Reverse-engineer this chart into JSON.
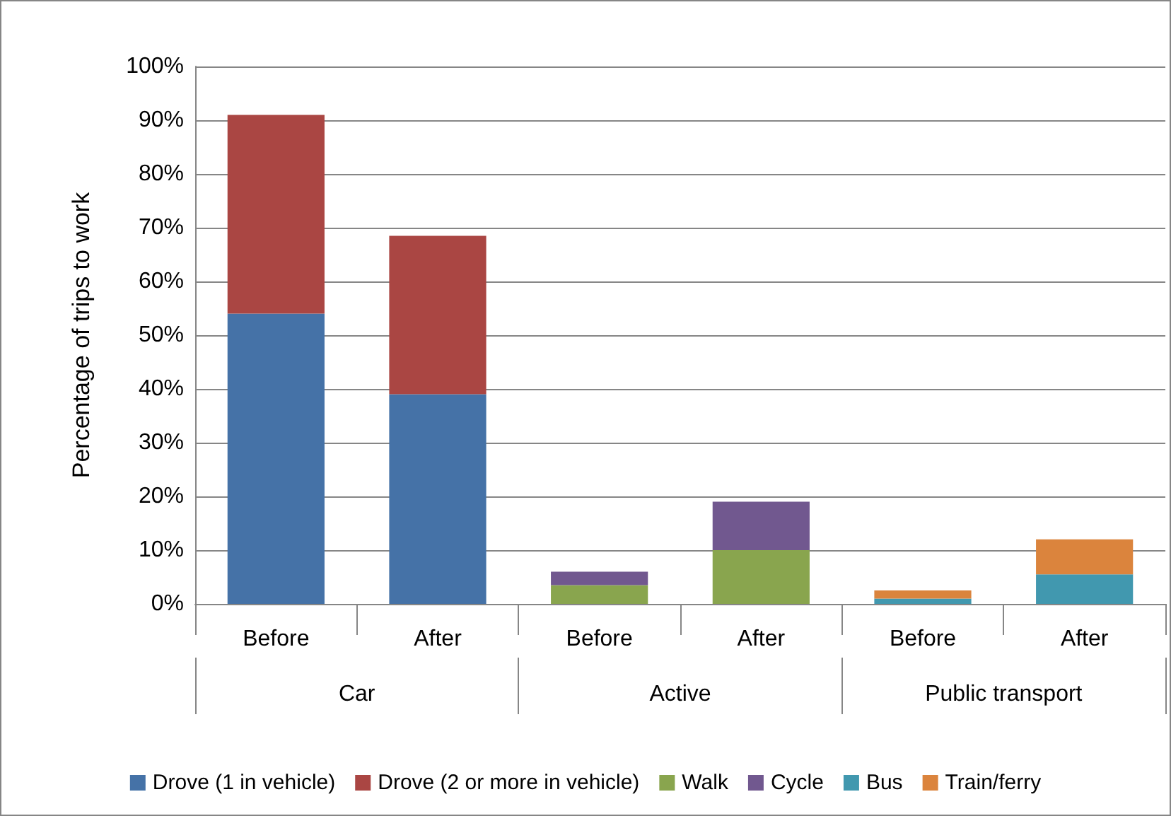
{
  "chart_data": {
    "type": "bar",
    "stacked": true,
    "ylabel": "Percentage of trips to work",
    "categories": [
      "Before",
      "After",
      "Before",
      "After",
      "Before",
      "After"
    ],
    "annotations": [
      "Car",
      "Active",
      "Public transport"
    ],
    "series": [
      {
        "name": "Drove (1 in vehicle)",
        "color": "#4572a7",
        "values": [
          54,
          39,
          null,
          null,
          null,
          null
        ]
      },
      {
        "name": "Drove (2 or more in vehicle)",
        "color": "#aa4643",
        "values": [
          37,
          29.5,
          null,
          null,
          null,
          null
        ]
      },
      {
        "name": "Walk",
        "color": "#89a54e",
        "values": [
          null,
          null,
          3.5,
          10,
          null,
          null
        ]
      },
      {
        "name": "Cycle",
        "color": "#71588f",
        "values": [
          null,
          null,
          2.5,
          9,
          null,
          null
        ]
      },
      {
        "name": "Bus",
        "color": "#4198af",
        "values": [
          null,
          null,
          null,
          null,
          1,
          5.5
        ]
      },
      {
        "name": "Train/ferry",
        "color": "#db843d",
        "values": [
          null,
          null,
          null,
          null,
          1.5,
          6.5
        ]
      }
    ],
    "ylim": [
      0,
      100
    ],
    "yticks": [
      {
        "value": 0,
        "label": "0%"
      },
      {
        "value": 10,
        "label": "10%"
      },
      {
        "value": 20,
        "label": "20%"
      },
      {
        "value": 30,
        "label": "30%"
      },
      {
        "value": 40,
        "label": "40%"
      },
      {
        "value": 50,
        "label": "50%"
      },
      {
        "value": 60,
        "label": "60%"
      },
      {
        "value": 70,
        "label": "70%"
      },
      {
        "value": 80,
        "label": "80%"
      },
      {
        "value": 90,
        "label": "90%"
      },
      {
        "value": 100,
        "label": "100%"
      }
    ],
    "grid": "y",
    "legend": "bottom"
  }
}
